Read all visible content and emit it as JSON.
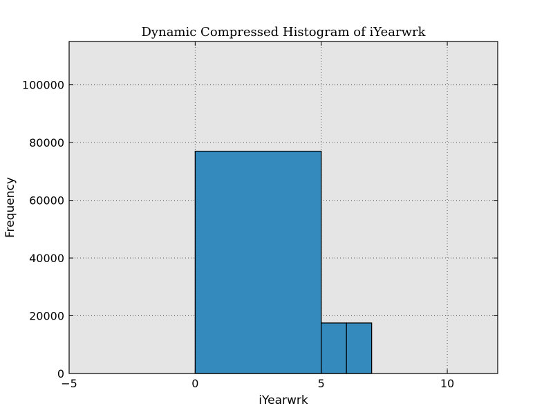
{
  "chart_data": {
    "type": "bar",
    "title": "Dynamic Compressed Histogram of iYearwrk",
    "xlabel": "iYearwrk",
    "ylabel": "Frequency",
    "xlim": [
      -5,
      12
    ],
    "ylim": [
      0,
      115000
    ],
    "xticks": [
      -5,
      0,
      5,
      10
    ],
    "yticks": [
      0,
      20000,
      40000,
      60000,
      80000,
      100000
    ],
    "xtick_labels": [
      "−5",
      "0",
      "5",
      "10"
    ],
    "ytick_labels": [
      "0",
      "20000",
      "40000",
      "60000",
      "80000",
      "100000"
    ],
    "grid": true,
    "bins": [
      {
        "x0": 0,
        "x1": 5,
        "value": 77000
      },
      {
        "x0": 5,
        "x1": 6,
        "value": 17500
      },
      {
        "x0": 6,
        "x1": 7,
        "value": 17500
      }
    ],
    "colors": {
      "bar": "#348abd",
      "plot_background": "#e5e5e5",
      "grid": "#555555"
    }
  }
}
